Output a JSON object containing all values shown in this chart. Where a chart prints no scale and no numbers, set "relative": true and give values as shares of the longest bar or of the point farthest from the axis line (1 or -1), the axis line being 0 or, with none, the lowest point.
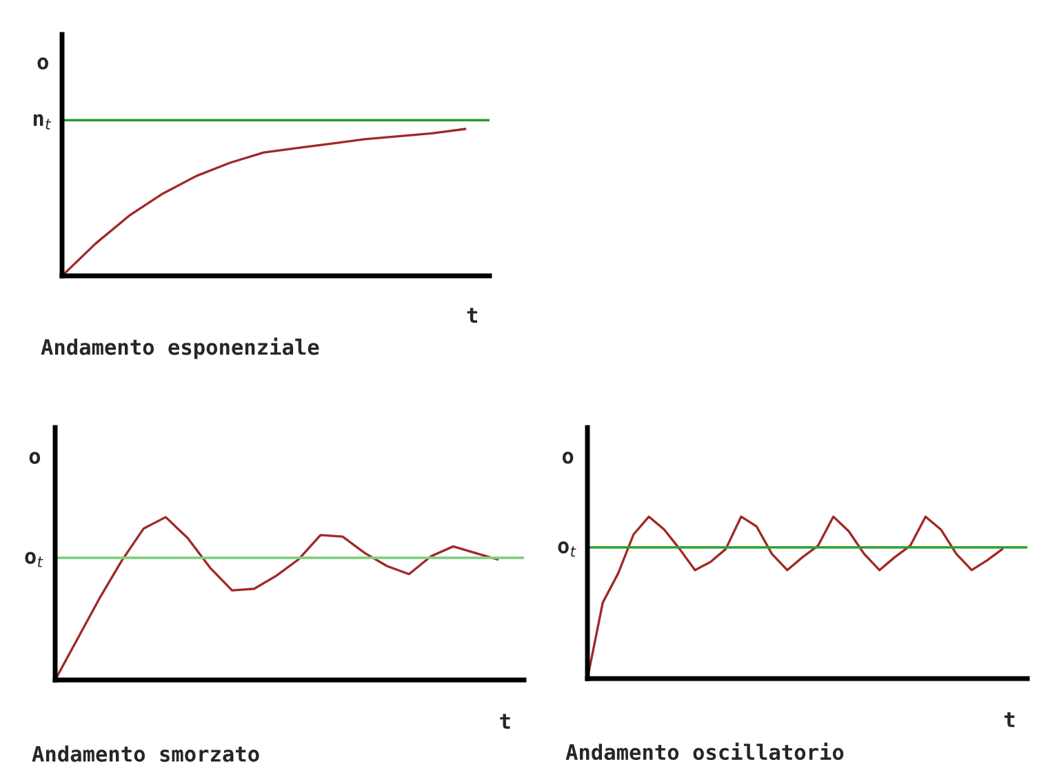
{
  "chart_data": [
    {
      "type": "line",
      "title": "Andamento esponenziale",
      "xlabel": "t",
      "ylabel": "o",
      "relative": true,
      "categories": [
        null,
        null,
        null,
        null,
        null,
        null,
        null,
        null,
        null,
        null,
        null,
        null,
        null
      ],
      "series": [
        {
          "color": "#a02828",
          "values": [
            0,
            0.22,
            0.41,
            0.56,
            0.68,
            0.77,
            0.84,
            0.87,
            0.9,
            0.93,
            0.95,
            0.97,
            1.0
          ]
        }
      ],
      "ref_lines": [
        {
          "axis": "y",
          "value": 1.06,
          "label": "n$_{t}$",
          "color": "#2a9a2a"
        }
      ]
    },
    {
      "type": "line",
      "title": "Andamento smorzato",
      "xlabel": "t",
      "ylabel": "o",
      "relative": true,
      "categories": [
        null,
        null,
        null,
        null,
        null,
        null,
        null,
        null,
        null,
        null,
        null,
        null,
        null,
        null,
        null,
        null,
        null,
        null,
        null,
        null,
        null
      ],
      "series": [
        {
          "color": "#a02828",
          "values": [
            0,
            0.25,
            0.5,
            0.73,
            0.93,
            1.0,
            0.87,
            0.69,
            0.55,
            0.56,
            0.64,
            0.74,
            0.89,
            0.88,
            0.78,
            0.7,
            0.65,
            0.76,
            0.82,
            0.78,
            0.74
          ]
        }
      ],
      "ref_lines": [
        {
          "axis": "y",
          "value": 0.75,
          "label": "o$_{t}$",
          "color": "#80d080"
        }
      ]
    },
    {
      "type": "line",
      "title": "Andamento oscillatorio",
      "xlabel": "t",
      "ylabel": "o",
      "relative": true,
      "categories": [
        null,
        null,
        null,
        null,
        null,
        null,
        null,
        null,
        null,
        null,
        null,
        null,
        null,
        null,
        null,
        null,
        null,
        null,
        null,
        null,
        null,
        null,
        null,
        null,
        null,
        null,
        null,
        null
      ],
      "series": [
        {
          "color": "#a02828",
          "values": [
            0,
            0.47,
            0.65,
            0.89,
            1.0,
            0.92,
            0.8,
            0.67,
            0.72,
            0.8,
            1.0,
            0.94,
            0.77,
            0.67,
            0.75,
            0.82,
            1.0,
            0.91,
            0.77,
            0.67,
            0.75,
            0.82,
            1.0,
            0.92,
            0.77,
            0.67,
            0.73,
            0.8
          ]
        }
      ],
      "ref_lines": [
        {
          "axis": "y",
          "value": 0.81,
          "label": "o$_{t}$",
          "color": "#30a030"
        }
      ]
    }
  ]
}
